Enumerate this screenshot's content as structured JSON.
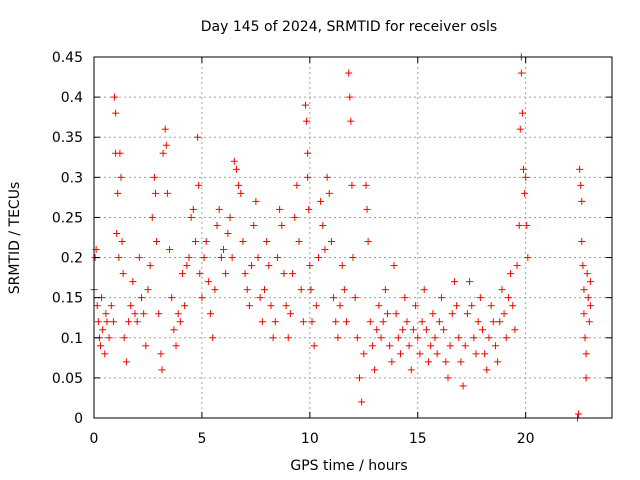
{
  "chart_data": {
    "type": "scatter",
    "title": "Day 145 of 2024, SRMTID for receiver osls",
    "xlabel": "GPS time / hours",
    "ylabel": "SRMTID / TECUs",
    "xlim": [
      0,
      24.0
    ],
    "ylim": [
      0,
      0.45
    ],
    "xticks": [
      0,
      5,
      10,
      15,
      20
    ],
    "xtick_labels": [
      "0",
      "5",
      "10",
      "15",
      "20"
    ],
    "yticks": [
      0,
      0.05,
      0.1,
      0.15,
      0.2,
      0.25,
      0.3,
      0.35,
      0.4,
      0.45
    ],
    "ytick_labels": [
      "0",
      "0.05",
      "0.1",
      "0.15",
      "0.2",
      "0.25",
      "0.3",
      "0.35",
      "0.4",
      "0.45"
    ],
    "grid": true,
    "marker": "+",
    "color": "#ff0000",
    "series": [
      {
        "name": "SRMTID",
        "points": [
          [
            0.0,
            0.16
          ],
          [
            0.05,
            0.2
          ],
          [
            0.1,
            0.21
          ],
          [
            0.15,
            0.14
          ],
          [
            0.2,
            0.12
          ],
          [
            0.25,
            0.1
          ],
          [
            0.3,
            0.09
          ],
          [
            0.35,
            0.15
          ],
          [
            0.4,
            0.11
          ],
          [
            0.5,
            0.08
          ],
          [
            0.55,
            0.13
          ],
          [
            0.6,
            0.12
          ],
          [
            0.7,
            0.1
          ],
          [
            0.8,
            0.14
          ],
          [
            0.9,
            0.12
          ],
          [
            0.95,
            0.4
          ],
          [
            1.0,
            0.38
          ],
          [
            1.0,
            0.33
          ],
          [
            1.05,
            0.23
          ],
          [
            1.1,
            0.28
          ],
          [
            1.15,
            0.2
          ],
          [
            1.2,
            0.33
          ],
          [
            1.25,
            0.3
          ],
          [
            1.3,
            0.22
          ],
          [
            1.35,
            0.18
          ],
          [
            1.4,
            0.1
          ],
          [
            1.5,
            0.07
          ],
          [
            1.6,
            0.12
          ],
          [
            1.7,
            0.14
          ],
          [
            1.8,
            0.17
          ],
          [
            1.9,
            0.13
          ],
          [
            2.0,
            0.12
          ],
          [
            2.1,
            0.2
          ],
          [
            2.2,
            0.15
          ],
          [
            2.3,
            0.13
          ],
          [
            2.4,
            0.09
          ],
          [
            2.5,
            0.16
          ],
          [
            2.6,
            0.19
          ],
          [
            2.7,
            0.25
          ],
          [
            2.8,
            0.3
          ],
          [
            2.85,
            0.28
          ],
          [
            2.9,
            0.22
          ],
          [
            3.0,
            0.13
          ],
          [
            3.1,
            0.08
          ],
          [
            3.15,
            0.06
          ],
          [
            3.2,
            0.33
          ],
          [
            3.3,
            0.36
          ],
          [
            3.35,
            0.34
          ],
          [
            3.4,
            0.28
          ],
          [
            3.5,
            0.21
          ],
          [
            3.6,
            0.15
          ],
          [
            3.7,
            0.11
          ],
          [
            3.8,
            0.09
          ],
          [
            3.9,
            0.13
          ],
          [
            4.0,
            0.12
          ],
          [
            4.1,
            0.18
          ],
          [
            4.2,
            0.14
          ],
          [
            4.3,
            0.19
          ],
          [
            4.4,
            0.2
          ],
          [
            4.5,
            0.25
          ],
          [
            4.6,
            0.26
          ],
          [
            4.7,
            0.22
          ],
          [
            4.8,
            0.35
          ],
          [
            4.85,
            0.29
          ],
          [
            4.9,
            0.18
          ],
          [
            5.0,
            0.15
          ],
          [
            5.1,
            0.2
          ],
          [
            5.2,
            0.22
          ],
          [
            5.3,
            0.17
          ],
          [
            5.4,
            0.13
          ],
          [
            5.5,
            0.1
          ],
          [
            5.6,
            0.16
          ],
          [
            5.7,
            0.24
          ],
          [
            5.8,
            0.26
          ],
          [
            5.9,
            0.2
          ],
          [
            6.0,
            0.21
          ],
          [
            6.1,
            0.18
          ],
          [
            6.2,
            0.23
          ],
          [
            6.3,
            0.25
          ],
          [
            6.4,
            0.2
          ],
          [
            6.5,
            0.32
          ],
          [
            6.6,
            0.31
          ],
          [
            6.7,
            0.29
          ],
          [
            6.8,
            0.28
          ],
          [
            6.9,
            0.22
          ],
          [
            7.0,
            0.18
          ],
          [
            7.1,
            0.16
          ],
          [
            7.2,
            0.14
          ],
          [
            7.3,
            0.19
          ],
          [
            7.4,
            0.24
          ],
          [
            7.5,
            0.27
          ],
          [
            7.6,
            0.2
          ],
          [
            7.7,
            0.15
          ],
          [
            7.8,
            0.12
          ],
          [
            7.9,
            0.16
          ],
          [
            8.0,
            0.22
          ],
          [
            8.1,
            0.19
          ],
          [
            8.2,
            0.14
          ],
          [
            8.3,
            0.1
          ],
          [
            8.4,
            0.12
          ],
          [
            8.5,
            0.2
          ],
          [
            8.6,
            0.26
          ],
          [
            8.7,
            0.24
          ],
          [
            8.8,
            0.18
          ],
          [
            8.9,
            0.14
          ],
          [
            9.0,
            0.1
          ],
          [
            9.1,
            0.13
          ],
          [
            9.2,
            0.18
          ],
          [
            9.3,
            0.25
          ],
          [
            9.4,
            0.29
          ],
          [
            9.5,
            0.22
          ],
          [
            9.6,
            0.16
          ],
          [
            9.7,
            0.12
          ],
          [
            9.8,
            0.39
          ],
          [
            9.85,
            0.37
          ],
          [
            9.9,
            0.33
          ],
          [
            9.9,
            0.3
          ],
          [
            9.95,
            0.26
          ],
          [
            10.0,
            0.19
          ],
          [
            10.05,
            0.16
          ],
          [
            10.1,
            0.12
          ],
          [
            10.2,
            0.09
          ],
          [
            10.3,
            0.14
          ],
          [
            10.4,
            0.2
          ],
          [
            10.5,
            0.27
          ],
          [
            10.6,
            0.24
          ],
          [
            10.7,
            0.21
          ],
          [
            10.8,
            0.3
          ],
          [
            10.9,
            0.28
          ],
          [
            11.0,
            0.22
          ],
          [
            11.1,
            0.15
          ],
          [
            11.2,
            0.12
          ],
          [
            11.3,
            0.1
          ],
          [
            11.4,
            0.14
          ],
          [
            11.5,
            0.19
          ],
          [
            11.6,
            0.16
          ],
          [
            11.7,
            0.12
          ],
          [
            11.8,
            0.43
          ],
          [
            11.85,
            0.4
          ],
          [
            11.9,
            0.37
          ],
          [
            11.95,
            0.29
          ],
          [
            12.0,
            0.2
          ],
          [
            12.1,
            0.15
          ],
          [
            12.2,
            0.1
          ],
          [
            12.3,
            0.05
          ],
          [
            12.4,
            0.02
          ],
          [
            12.5,
            0.08
          ],
          [
            12.6,
            0.29
          ],
          [
            12.65,
            0.26
          ],
          [
            12.7,
            0.22
          ],
          [
            12.8,
            0.12
          ],
          [
            12.9,
            0.09
          ],
          [
            13.0,
            0.06
          ],
          [
            13.1,
            0.11
          ],
          [
            13.2,
            0.14
          ],
          [
            13.3,
            0.1
          ],
          [
            13.4,
            0.12
          ],
          [
            13.5,
            0.16
          ],
          [
            13.6,
            0.13
          ],
          [
            13.7,
            0.09
          ],
          [
            13.8,
            0.07
          ],
          [
            13.9,
            0.19
          ],
          [
            14.0,
            0.13
          ],
          [
            14.1,
            0.1
          ],
          [
            14.2,
            0.08
          ],
          [
            14.3,
            0.11
          ],
          [
            14.4,
            0.15
          ],
          [
            14.5,
            0.12
          ],
          [
            14.6,
            0.09
          ],
          [
            14.7,
            0.06
          ],
          [
            14.8,
            0.11
          ],
          [
            14.9,
            0.14
          ],
          [
            15.0,
            0.1
          ],
          [
            15.1,
            0.08
          ],
          [
            15.2,
            0.12
          ],
          [
            15.3,
            0.16
          ],
          [
            15.4,
            0.11
          ],
          [
            15.5,
            0.07
          ],
          [
            15.6,
            0.09
          ],
          [
            15.7,
            0.13
          ],
          [
            15.8,
            0.1
          ],
          [
            15.9,
            0.08
          ],
          [
            16.0,
            0.12
          ],
          [
            16.1,
            0.15
          ],
          [
            16.2,
            0.11
          ],
          [
            16.3,
            0.07
          ],
          [
            16.4,
            0.05
          ],
          [
            16.5,
            0.09
          ],
          [
            16.6,
            0.13
          ],
          [
            16.7,
            0.17
          ],
          [
            16.8,
            0.14
          ],
          [
            16.9,
            0.1
          ],
          [
            17.0,
            0.07
          ],
          [
            17.1,
            0.04
          ],
          [
            17.2,
            0.09
          ],
          [
            17.3,
            0.13
          ],
          [
            17.4,
            0.17
          ],
          [
            17.5,
            0.14
          ],
          [
            17.6,
            0.1
          ],
          [
            17.7,
            0.08
          ],
          [
            17.8,
            0.12
          ],
          [
            17.9,
            0.15
          ],
          [
            18.0,
            0.11
          ],
          [
            18.1,
            0.08
          ],
          [
            18.2,
            0.06
          ],
          [
            18.3,
            0.1
          ],
          [
            18.4,
            0.14
          ],
          [
            18.5,
            0.12
          ],
          [
            18.6,
            0.09
          ],
          [
            18.7,
            0.07
          ],
          [
            18.8,
            0.12
          ],
          [
            18.9,
            0.16
          ],
          [
            19.0,
            0.13
          ],
          [
            19.1,
            0.1
          ],
          [
            19.2,
            0.15
          ],
          [
            19.3,
            0.18
          ],
          [
            19.4,
            0.14
          ],
          [
            19.5,
            0.11
          ],
          [
            19.6,
            0.19
          ],
          [
            19.7,
            0.24
          ],
          [
            19.75,
            0.36
          ],
          [
            19.8,
            0.45
          ],
          [
            19.8,
            0.43
          ],
          [
            19.85,
            0.38
          ],
          [
            19.9,
            0.31
          ],
          [
            19.95,
            0.28
          ],
          [
            20.0,
            0.3
          ],
          [
            20.05,
            0.24
          ],
          [
            20.1,
            0.2
          ],
          [
            22.4,
            0.0
          ],
          [
            22.45,
            0.005
          ],
          [
            22.5,
            0.31
          ],
          [
            22.55,
            0.29
          ],
          [
            22.6,
            0.27
          ],
          [
            22.6,
            0.22
          ],
          [
            22.65,
            0.19
          ],
          [
            22.7,
            0.16
          ],
          [
            22.7,
            0.13
          ],
          [
            22.75,
            0.1
          ],
          [
            22.8,
            0.08
          ],
          [
            22.8,
            0.05
          ],
          [
            22.85,
            0.18
          ],
          [
            22.9,
            0.15
          ],
          [
            22.95,
            0.12
          ],
          [
            23.0,
            0.14
          ],
          [
            23.0,
            0.17
          ]
        ]
      }
    ]
  }
}
